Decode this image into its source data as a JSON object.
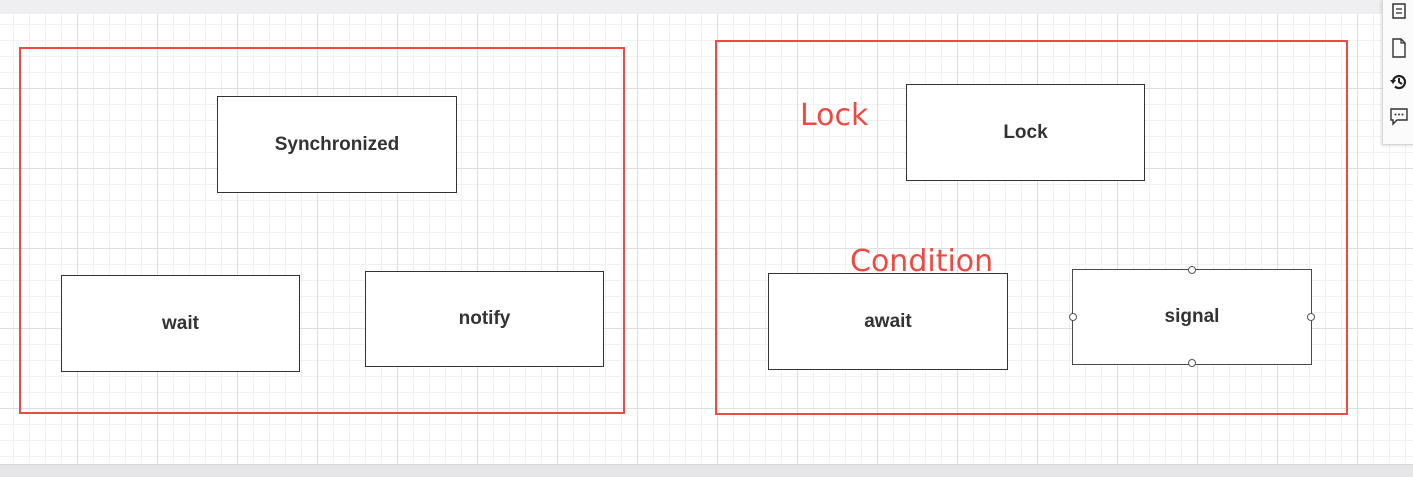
{
  "canvas": {
    "left_group": {
      "boxes": {
        "synchronized": "Synchronized",
        "wait": "wait",
        "notify": "notify"
      }
    },
    "right_group": {
      "labels": {
        "lock": "Lock",
        "condition": "Condition"
      },
      "boxes": {
        "lock": "Lock",
        "await": "await",
        "signal": "signal"
      }
    }
  },
  "toolbar": {
    "icons": [
      "format-icon",
      "page-icon",
      "history-icon",
      "comment-icon"
    ]
  },
  "colors": {
    "group_border": "#ee4a44",
    "label_text": "#ee4a44",
    "box_border": "#333333"
  }
}
